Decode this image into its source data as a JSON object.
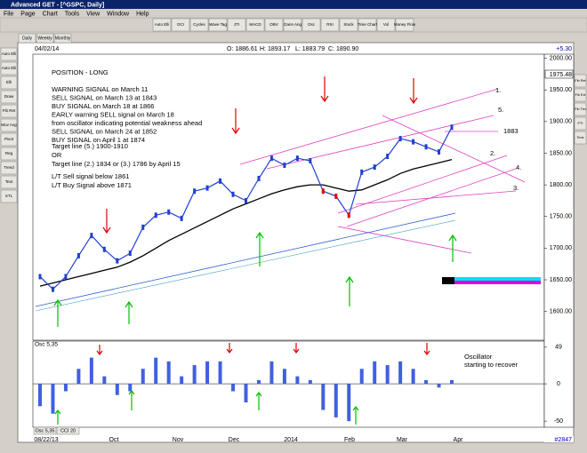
{
  "window": {
    "title": "Advanced GET - [^GSPC, Daily]"
  },
  "menu": [
    "File",
    "Page",
    "Chart",
    "Tools",
    "View",
    "Window",
    "Help"
  ],
  "toolbar": [
    "Auto Elli",
    "OCI",
    "Cycles",
    "Wave Tag",
    "JTI",
    "MACD",
    "OBV",
    "Gann Ang",
    "Osc",
    "RSI",
    "Stock",
    "Time Chart",
    "Vol",
    "Money Flow"
  ],
  "side_tools": [
    "Auto Elli",
    "Auto Elli",
    "Elli",
    "Draw",
    "Fib Ret",
    "Mov Avg",
    "Pivot",
    "Reg",
    "Trend",
    "Text",
    "XTL"
  ],
  "right_tools": [
    "Fib Ret",
    "Fib Ext",
    "Fib Tim",
    "PTI",
    "Time"
  ],
  "tabs": [
    "Daily",
    "Weekly",
    "Monthly"
  ],
  "header": {
    "date": "04/02/14",
    "open": "O: 1886.61",
    "high": "H: 1893.17",
    "low": "L: 1883.79",
    "close": "C: 1890.90",
    "change": "+5.30",
    "last": "1975.48"
  },
  "annotation": {
    "position": "POSITION - LONG",
    "signals": [
      "WARNING SIGNAL on March 11",
      "SELL SIGNAL on March 13 at 1843",
      "BUY SIGNAL on March 18 at 1866",
      "EARLY warning SELL signal on March 18",
      "from oscillator indicating potential weakness ahead",
      "SELL SIGNAL on March 24 at 1852",
      "BUY SIGNAL on April 1 at 1874"
    ],
    "targets": [
      "Target line (5.) 1900-1910",
      "OR",
      "Target line (2.) 1834 or (3.) 1786 by April 15"
    ],
    "long_term": [
      "L/T Sell signal below 1861",
      "L/T Buy Signal above 1871"
    ],
    "oscillator_note": [
      "Oscillator",
      "starting to recover"
    ]
  },
  "line_labels": [
    "1.",
    "5.",
    "1883",
    "2.",
    "4.",
    "3."
  ],
  "price": {
    "ylim": [
      1556,
      2005
    ],
    "yticks": [
      {
        "value": 2000,
        "label": "2000.00"
      },
      {
        "value": 1950,
        "label": "1950.00"
      },
      {
        "value": 1900,
        "label": "1900.00"
      },
      {
        "value": 1850,
        "label": "1850.00"
      },
      {
        "value": 1800,
        "label": "1800.00"
      },
      {
        "value": 1750,
        "label": "1750.00"
      },
      {
        "value": 1700,
        "label": "1700.00"
      },
      {
        "value": 1650,
        "label": "1650.00"
      },
      {
        "value": 1600,
        "label": "1600.00"
      }
    ],
    "close": [
      1655,
      1635,
      1655,
      1688,
      1720,
      1698,
      1680,
      1692,
      1733,
      1752,
      1757,
      1747,
      1790,
      1795,
      1806,
      1785,
      1775,
      1810,
      1842,
      1831,
      1842,
      1838,
      1790,
      1782,
      1752,
      1820,
      1828,
      1845,
      1873,
      1868,
      1860,
      1852,
      1891
    ],
    "ma": [
      1640,
      1645,
      1650,
      1655,
      1660,
      1665,
      1670,
      1678,
      1688,
      1700,
      1712,
      1722,
      1732,
      1742,
      1752,
      1762,
      1770,
      1778,
      1786,
      1792,
      1797,
      1800,
      1800,
      1795,
      1790,
      1792,
      1800,
      1808,
      1818,
      1825,
      1830,
      1835,
      1840
    ]
  },
  "oscillator": {
    "name": "Osc 5,35",
    "ylim": [
      -57,
      56
    ],
    "yticks": [
      49,
      0,
      -50
    ],
    "values": [
      -30,
      -40,
      -10,
      20,
      35,
      10,
      -15,
      -10,
      20,
      35,
      30,
      10,
      25,
      30,
      30,
      -10,
      -25,
      5,
      30,
      20,
      10,
      5,
      -35,
      -45,
      -50,
      20,
      30,
      25,
      30,
      20,
      5,
      -5,
      5
    ]
  },
  "bottom_tabs": [
    "Osc 5,35",
    "CCI 20"
  ],
  "x_labels": [
    "08/22/13",
    "Oct",
    "Nov",
    "Dec",
    "2014",
    "Feb",
    "Mar",
    "Apr"
  ],
  "status": "#2847"
}
